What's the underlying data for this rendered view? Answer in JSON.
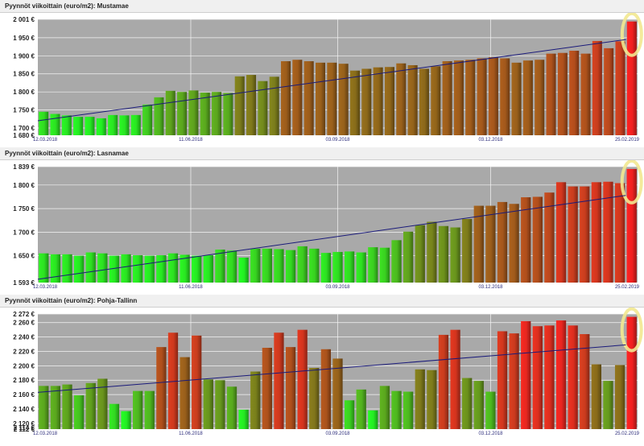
{
  "colors": {
    "plot_bg": "#a9a9a9",
    "grid": "#f4f4f4",
    "trend": "#1a1a7a",
    "low": "#22ee22",
    "mid": "#8a6a1a",
    "high": "#f02020",
    "highlight_ring": "#f2e890",
    "date_text": "#2a2a7a",
    "axis_text": "#222222"
  },
  "chart_data": [
    {
      "type": "bar",
      "title": "Pyynnöt viikoittain (euro/m2): Mustamae",
      "x_labels": [
        "12.03.2018",
        "11.06.2018",
        "03.09.2018",
        "03.12.2018",
        "25.02.2019"
      ],
      "ytick_labels": [
        "1 680 €",
        "1 700 €",
        "1 750 €",
        "1 800 €",
        "1 850 €",
        "1 900 €",
        "1 950 €",
        "2 001 €"
      ],
      "ylim": [
        1680,
        2001
      ],
      "grid": true,
      "trend_line": [
        1720,
        1945
      ],
      "values": [
        1745,
        1739,
        1735,
        1731,
        1731,
        1727,
        1736,
        1735,
        1736,
        1765,
        1785,
        1803,
        1800,
        1804,
        1798,
        1800,
        1797,
        1843,
        1847,
        1830,
        1842,
        1885,
        1889,
        1885,
        1881,
        1881,
        1878,
        1859,
        1864,
        1868,
        1869,
        1879,
        1874,
        1864,
        1871,
        1885,
        1887,
        1889,
        1893,
        1896,
        1893,
        1881,
        1887,
        1889,
        1906,
        1908,
        1914,
        1906,
        1941,
        1921,
        1940,
        1995
      ]
    },
    {
      "type": "bar",
      "title": "Pyynnöt viikoittain (euro/m2): Lasnamae",
      "x_labels": [
        "12.03.2018",
        "11.06.2018",
        "03.09.2018",
        "03.12.2018",
        "25.02.2019"
      ],
      "ytick_labels": [
        "1 593 €",
        "1 650 €",
        "1 700 €",
        "1 750 €",
        "1 800 €",
        "1 839 €"
      ],
      "ylim": [
        1593,
        1839
      ],
      "grid": true,
      "trend_line": [
        1600,
        1778
      ],
      "values": [
        1655,
        1653,
        1653,
        1650,
        1657,
        1655,
        1650,
        1653,
        1651,
        1650,
        1651,
        1655,
        1652,
        1650,
        1651,
        1663,
        1661,
        1646,
        1665,
        1665,
        1664,
        1662,
        1670,
        1665,
        1656,
        1658,
        1659,
        1657,
        1668,
        1667,
        1683,
        1701,
        1715,
        1722,
        1713,
        1710,
        1728,
        1756,
        1756,
        1764,
        1760,
        1774,
        1775,
        1784,
        1806,
        1797,
        1797,
        1806,
        1807,
        1804,
        1834
      ]
    },
    {
      "type": "bar",
      "title": "Pyynnöt viikoittain (euro/m2): Pohja-Tallinn",
      "x_labels": [
        "12.03.2018",
        "11.06.2018",
        "03.09.2018",
        "03.12.2018",
        "25.02.2019"
      ],
      "ytick_labels": [
        "2 112 €",
        "2 114 €",
        "2 120 €",
        "2 140 €",
        "2 160 €",
        "2 180 €",
        "2 200 €",
        "2 220 €",
        "2 240 €",
        "2 260 €",
        "2 272 €"
      ],
      "ylim": [
        2112,
        2272
      ],
      "grid": true,
      "trend_line": [
        2163,
        2229
      ],
      "values": [
        2172,
        2172,
        2174,
        2159,
        2176,
        2182,
        2147,
        2137,
        2165,
        2165,
        2226,
        2246,
        2212,
        2242,
        2181,
        2180,
        2171,
        2139,
        2192,
        2225,
        2246,
        2226,
        2250,
        2197,
        2223,
        2210,
        2152,
        2167,
        2138,
        2172,
        2165,
        2164,
        2195,
        2194,
        2243,
        2250,
        2183,
        2179,
        2164,
        2248,
        2245,
        2262,
        2255,
        2256,
        2263,
        2256,
        2244,
        2202,
        2179,
        2201,
        2268
      ]
    }
  ]
}
